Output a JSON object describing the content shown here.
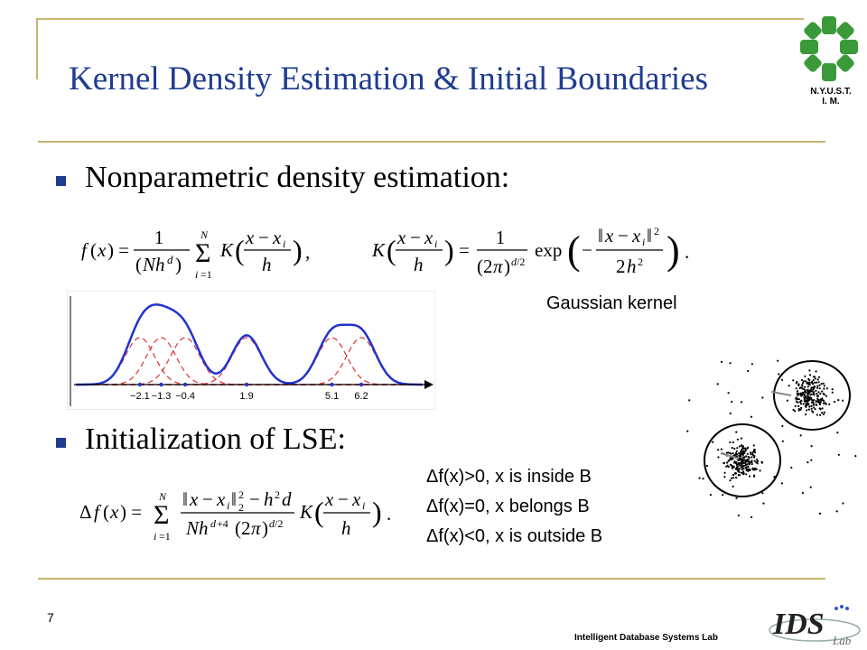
{
  "slide": {
    "title": "Kernel Density Estimation & Initial Boundaries",
    "page_number": "7",
    "footer": "Intelligent Database Systems Lab"
  },
  "logo": {
    "line1": "N.Y.U.S.T.",
    "line2": "I. M.",
    "color": "#3a9a3a"
  },
  "bullets": [
    {
      "text": "Nonparametric density estimation:"
    },
    {
      "text": "Initialization of LSE:"
    }
  ],
  "kernel_label": "Gaussian kernel",
  "conditions": [
    "Δf(x)>0, x is inside B",
    "Δf(x)=0, x belongs B",
    "Δf(x)<0, x is outside B"
  ],
  "density_plot": {
    "ticks": [
      "−2.1",
      "−1.3",
      "−0.4",
      "1.9",
      "5.1",
      "6.2"
    ],
    "sum_color": "#2233cc",
    "kernel_color": "#e03030"
  },
  "ids_logo": {
    "text": "IDS",
    "sub": "Lab"
  },
  "colors": {
    "title": "#1f3c8f",
    "rule": "#c8b670"
  }
}
